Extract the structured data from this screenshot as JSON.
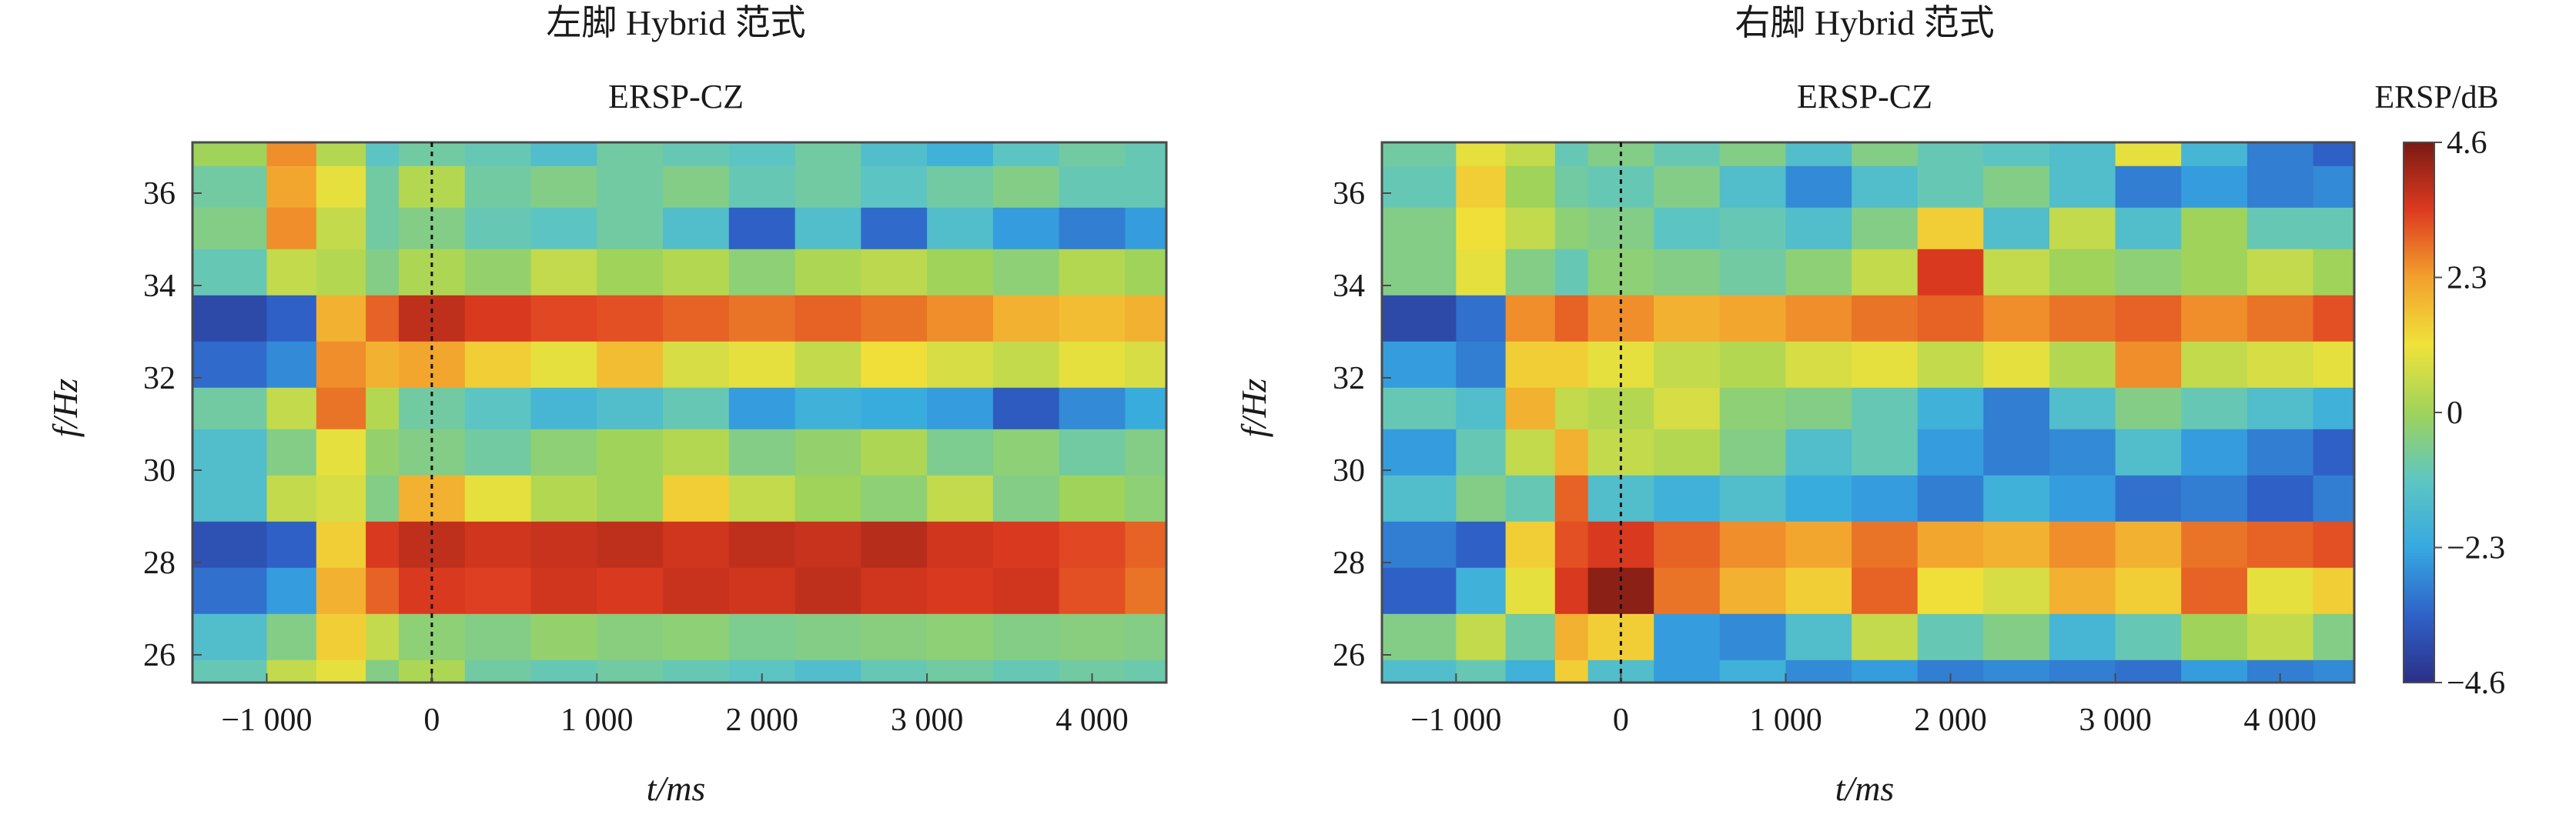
{
  "figure": {
    "colors": {
      "background": "#ffffff",
      "frame": "#4a4a4a",
      "marker": "#111111"
    },
    "colormap": [
      "#2b2f87",
      "#2f62c8",
      "#36a9e1",
      "#5ec6c2",
      "#9fd35a",
      "#f0e23a",
      "#f3a02d",
      "#dd3a20",
      "#7a1a14"
    ],
    "colorbar": {
      "label": "ERSP/dB",
      "range": [
        -4.6,
        4.6
      ],
      "ticks": [
        4.6,
        2.3,
        0,
        -2.3,
        -4.6
      ],
      "tick_labels": [
        "4.6",
        "2.3",
        "0",
        "−2.3",
        "−4.6"
      ]
    }
  },
  "chart_data": [
    {
      "type": "heatmap",
      "title": "左脚 Hybrid 范式",
      "subtitle": "ERSP-CZ",
      "xlabel": "t/ms",
      "ylabel": "f/Hz",
      "xlim": [
        -1450,
        4450
      ],
      "ylim": [
        25.4,
        37.1
      ],
      "x_ticks": [
        -1000,
        0,
        1000,
        2000,
        3000,
        4000
      ],
      "x_tick_labels": [
        "−1 000",
        "0",
        "1 000",
        "2 000",
        "3 000",
        "4 000"
      ],
      "y_ticks": [
        26,
        28,
        30,
        32,
        34,
        36
      ],
      "y_tick_labels": [
        "26",
        "28",
        "30",
        "32",
        "34",
        "36"
      ],
      "event_marker_x": 0,
      "value_range": [
        -4.6,
        4.6
      ],
      "x_bins": [
        -1450,
        -1000,
        -700,
        -400,
        -200,
        200,
        600,
        1000,
        1400,
        1800,
        2200,
        2600,
        3000,
        3400,
        3800,
        4200,
        4450
      ],
      "rows": [
        {
          "f_low": 25.4,
          "f_high": 25.9,
          "values": [
            -1.0,
            0.5,
            1.0,
            -0.5,
            0.2,
            -0.8,
            -1.0,
            -0.8,
            -1.0,
            -1.2,
            -1.5,
            -1.0,
            -0.8,
            -1.0,
            -0.8,
            -0.9
          ]
        },
        {
          "f_low": 25.9,
          "f_high": 26.9,
          "values": [
            -1.5,
            -0.5,
            1.5,
            0.5,
            -0.3,
            -0.5,
            -0.2,
            -0.4,
            -0.3,
            -0.6,
            -0.5,
            -0.4,
            -0.3,
            -0.5,
            -0.4,
            -0.5
          ]
        },
        {
          "f_low": 26.9,
          "f_high": 27.9,
          "values": [
            -3.2,
            -2.5,
            2.0,
            3.0,
            3.5,
            3.4,
            3.6,
            3.5,
            3.7,
            3.6,
            3.8,
            3.6,
            3.5,
            3.6,
            3.2,
            2.8
          ]
        },
        {
          "f_low": 27.9,
          "f_high": 28.9,
          "values": [
            -3.8,
            -3.5,
            1.5,
            3.5,
            3.8,
            3.6,
            3.7,
            3.8,
            3.6,
            3.8,
            3.7,
            3.9,
            3.6,
            3.5,
            3.3,
            3.0
          ]
        },
        {
          "f_low": 28.9,
          "f_high": 29.9,
          "values": [
            -1.5,
            0.5,
            0.8,
            -0.5,
            2.0,
            1.0,
            0.3,
            0.0,
            1.5,
            0.5,
            0.0,
            -0.3,
            0.5,
            -0.5,
            0.0,
            -0.3
          ]
        },
        {
          "f_low": 29.9,
          "f_high": 30.9,
          "values": [
            -1.5,
            -0.5,
            1.0,
            -0.2,
            -0.5,
            -0.8,
            -0.3,
            0.0,
            0.3,
            -0.5,
            -0.2,
            0.2,
            -0.6,
            -0.3,
            -0.8,
            -0.5
          ]
        },
        {
          "f_low": 30.9,
          "f_high": 31.8,
          "values": [
            -0.8,
            0.5,
            2.8,
            0.3,
            -0.8,
            -1.2,
            -1.8,
            -1.5,
            -1.0,
            -2.5,
            -2.0,
            -2.2,
            -2.5,
            -3.6,
            -2.8,
            -2.2
          ]
        },
        {
          "f_low": 31.8,
          "f_high": 32.8,
          "values": [
            -3.3,
            -2.8,
            2.5,
            2.0,
            2.2,
            1.5,
            1.0,
            1.8,
            0.8,
            1.0,
            0.5,
            1.2,
            0.8,
            0.5,
            1.0,
            0.8
          ]
        },
        {
          "f_low": 32.8,
          "f_high": 33.8,
          "values": [
            -4.0,
            -3.5,
            2.0,
            3.0,
            3.8,
            3.5,
            3.3,
            3.2,
            3.0,
            2.8,
            3.0,
            2.8,
            2.5,
            2.0,
            1.8,
            2.0
          ]
        },
        {
          "f_low": 33.8,
          "f_high": 34.8,
          "values": [
            -1.0,
            0.5,
            0.3,
            -0.5,
            0.2,
            -0.2,
            0.5,
            0.0,
            0.3,
            -0.3,
            0.2,
            0.4,
            0.0,
            -0.3,
            0.3,
            0.0
          ]
        },
        {
          "f_low": 34.8,
          "f_high": 35.7,
          "values": [
            -0.5,
            2.5,
            0.5,
            -0.8,
            -0.5,
            -1.0,
            -1.2,
            -0.8,
            -1.5,
            -3.5,
            -1.5,
            -3.3,
            -1.5,
            -2.5,
            -3.0,
            -2.5
          ]
        },
        {
          "f_low": 35.7,
          "f_high": 36.6,
          "values": [
            -0.8,
            2.2,
            1.0,
            -0.8,
            0.3,
            -0.8,
            -0.5,
            -0.8,
            -0.5,
            -1.0,
            -0.8,
            -1.2,
            -0.8,
            -0.5,
            -1.0,
            -1.0
          ]
        },
        {
          "f_low": 36.6,
          "f_high": 37.1,
          "values": [
            0.0,
            2.5,
            0.3,
            -1.2,
            -0.8,
            -1.0,
            -1.5,
            -0.8,
            -1.0,
            -1.2,
            -0.8,
            -1.5,
            -2.0,
            -1.2,
            -0.8,
            -1.0
          ]
        }
      ]
    },
    {
      "type": "heatmap",
      "title": "右脚 Hybrid 范式",
      "subtitle": "ERSP-CZ",
      "xlabel": "t/ms",
      "ylabel": "f/Hz",
      "xlim": [
        -1450,
        4450
      ],
      "ylim": [
        25.4,
        37.1
      ],
      "x_ticks": [
        -1000,
        0,
        1000,
        2000,
        3000,
        4000
      ],
      "x_tick_labels": [
        "−1 000",
        "0",
        "1 000",
        "2 000",
        "3 000",
        "4 000"
      ],
      "y_ticks": [
        26,
        28,
        30,
        32,
        34,
        36
      ],
      "y_tick_labels": [
        "26",
        "28",
        "30",
        "32",
        "34",
        "36"
      ],
      "event_marker_x": 0,
      "value_range": [
        -4.6,
        4.6
      ],
      "x_bins": [
        -1450,
        -1000,
        -700,
        -400,
        -200,
        200,
        600,
        1000,
        1400,
        1800,
        2200,
        2600,
        3000,
        3400,
        3800,
        4200,
        4450
      ],
      "rows": [
        {
          "f_low": 25.4,
          "f_high": 25.9,
          "values": [
            -1.5,
            -1.0,
            -2.0,
            1.5,
            -1.5,
            -2.5,
            -2.0,
            -2.8,
            -2.5,
            -3.0,
            -2.8,
            -3.0,
            -3.2,
            -2.5,
            -3.0,
            -2.8
          ]
        },
        {
          "f_low": 25.9,
          "f_high": 26.9,
          "values": [
            -0.5,
            0.5,
            -0.8,
            2.0,
            1.5,
            -2.5,
            -2.8,
            -1.5,
            0.5,
            -1.0,
            -0.5,
            -1.8,
            -1.0,
            0.0,
            0.5,
            -0.5
          ]
        },
        {
          "f_low": 26.9,
          "f_high": 27.9,
          "values": [
            -3.5,
            -2.0,
            1.0,
            3.5,
            4.4,
            2.8,
            2.0,
            1.5,
            3.0,
            1.2,
            0.8,
            2.0,
            1.5,
            3.0,
            1.0,
            1.5
          ]
        },
        {
          "f_low": 27.9,
          "f_high": 28.9,
          "values": [
            -3.0,
            -3.5,
            1.5,
            3.2,
            3.5,
            3.0,
            2.5,
            2.2,
            2.8,
            2.2,
            2.0,
            2.5,
            2.0,
            2.8,
            3.0,
            3.2
          ]
        },
        {
          "f_low": 28.9,
          "f_high": 29.9,
          "values": [
            -1.5,
            -0.5,
            -1.0,
            3.0,
            -1.5,
            -2.0,
            -1.5,
            -2.2,
            -2.5,
            -3.0,
            -2.0,
            -2.5,
            -3.2,
            -3.0,
            -3.5,
            -3.0
          ]
        },
        {
          "f_low": 29.9,
          "f_high": 30.9,
          "values": [
            -2.5,
            -1.0,
            0.5,
            2.0,
            0.5,
            0.3,
            -0.5,
            -1.5,
            -1.0,
            -2.5,
            -3.0,
            -2.8,
            -1.5,
            -2.5,
            -3.0,
            -3.5
          ]
        },
        {
          "f_low": 30.9,
          "f_high": 31.8,
          "values": [
            -1.0,
            -1.5,
            2.0,
            0.5,
            0.3,
            0.8,
            -0.3,
            -0.5,
            -1.0,
            -2.0,
            -3.0,
            -1.5,
            -0.5,
            -1.0,
            -1.5,
            -2.0
          ]
        },
        {
          "f_low": 31.8,
          "f_high": 32.8,
          "values": [
            -2.5,
            -3.0,
            1.5,
            1.5,
            1.0,
            0.5,
            0.3,
            0.8,
            1.0,
            0.5,
            1.0,
            0.3,
            2.5,
            0.5,
            0.8,
            1.0
          ]
        },
        {
          "f_low": 32.8,
          "f_high": 33.8,
          "values": [
            -4.0,
            -3.2,
            2.5,
            3.0,
            2.5,
            2.0,
            2.2,
            2.5,
            2.8,
            3.0,
            2.5,
            2.8,
            3.0,
            2.5,
            2.8,
            3.2
          ]
        },
        {
          "f_low": 33.8,
          "f_high": 34.8,
          "values": [
            -0.5,
            1.0,
            -0.5,
            -1.0,
            -0.3,
            -0.5,
            -0.8,
            -0.3,
            0.5,
            3.5,
            0.5,
            0.0,
            -0.3,
            0.0,
            0.5,
            0.0
          ]
        },
        {
          "f_low": 34.8,
          "f_high": 35.7,
          "values": [
            -0.5,
            1.2,
            0.5,
            -0.3,
            -0.5,
            -1.2,
            -1.0,
            -1.5,
            -0.5,
            1.5,
            -1.5,
            0.5,
            -1.5,
            0.0,
            -1.0,
            -1.0
          ]
        },
        {
          "f_low": 35.7,
          "f_high": 36.6,
          "values": [
            -1.0,
            1.5,
            0.0,
            -0.8,
            -1.0,
            -0.5,
            -1.5,
            -2.8,
            -1.5,
            -1.0,
            -0.5,
            -1.5,
            -3.0,
            -2.5,
            -3.0,
            -2.8
          ]
        },
        {
          "f_low": 36.6,
          "f_high": 37.1,
          "values": [
            -0.8,
            1.0,
            0.5,
            -1.0,
            -0.5,
            -1.0,
            -0.5,
            -1.5,
            -0.5,
            -1.0,
            -1.2,
            -1.5,
            1.0,
            -1.8,
            -3.0,
            -3.5
          ]
        }
      ]
    }
  ]
}
